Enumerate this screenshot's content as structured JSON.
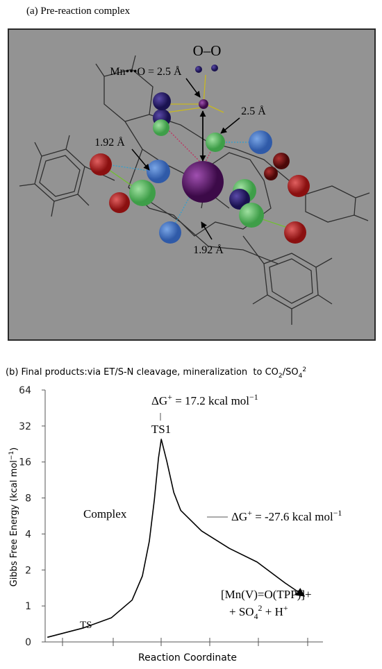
{
  "figure_a": {
    "title": "(a)  Pre-reaction complex",
    "annotations": [
      "O–O",
      "Mn•••O = 2.5 Å",
      "2.5 Å",
      "1.92 Å",
      "1.92 Å"
    ]
  },
  "chart_data": {
    "type": "line",
    "title": [
      {
        "text": "(b) Final products:via ET/S-N cleavage, mineralization  to CO",
        "style": "normal"
      },
      {
        "text": "2",
        "style": "sub"
      },
      {
        "text": "/SO",
        "style": "normal"
      },
      {
        "text": "4",
        "style": "sub"
      },
      {
        "text": "2",
        "style": "sup"
      }
    ],
    "y_label": [
      {
        "text": "Gibbs Free Energy (kcal mol",
        "style": "normal"
      },
      {
        "text": "−1",
        "style": "sup"
      },
      {
        "text": ")",
        "style": "normal"
      }
    ],
    "x_label": "Reaction Coordinate",
    "yscale": "log",
    "ylim": [
      0,
      64
    ],
    "yticks": [
      0,
      1,
      2,
      4,
      8,
      16,
      32,
      64
    ],
    "xlim": [
      0,
      10
    ],
    "x": [
      0.08,
      1.38,
      2.38,
      3.13,
      3.5,
      3.75,
      3.93,
      4.08,
      4.18,
      4.38,
      4.63,
      4.88,
      5.63,
      6.63,
      7.63,
      8.63,
      9.33
    ],
    "values": [
      0.13,
      0.39,
      0.67,
      1.12,
      1.78,
      3.48,
      7.7,
      17.3,
      24.8,
      16.2,
      8.9,
      6.3,
      4.24,
      3.03,
      2.33,
      1.56,
      1.21
    ],
    "color": "#000000",
    "annotations": [
      [
        {
          "text": "ΔG",
          "style": "normal"
        },
        {
          "text": "+",
          "style": "sup"
        },
        {
          "text": " = 17.2 kcal mol",
          "style": "normal"
        },
        {
          "text": "−1",
          "style": "sup"
        }
      ],
      [
        {
          "text": "TS1",
          "style": "normal"
        }
      ],
      [
        {
          "text": "Complex",
          "style": "normal"
        }
      ],
      [
        {
          "text": "ΔG",
          "style": "normal"
        },
        {
          "text": "+",
          "style": "sup"
        },
        {
          "text": " = -27.6 ",
          "style": "normal"
        },
        {
          "text": "kcal mol",
          "style": "normal"
        },
        {
          "text": "−1",
          "style": "sup"
        }
      ],
      [
        {
          "text": "[Mn(V)=O(TPP)]+",
          "style": "normal"
        }
      ],
      [
        {
          "text": "+ SO",
          "style": "normal"
        },
        {
          "text": "4",
          "style": "sub"
        },
        {
          "text": "2",
          "style": "sup"
        },
        {
          "text": " + H",
          "style": "normal"
        },
        {
          "text": "+",
          "style": "sup"
        }
      ],
      [
        {
          "text": "TS",
          "style": "normal"
        }
      ]
    ]
  }
}
